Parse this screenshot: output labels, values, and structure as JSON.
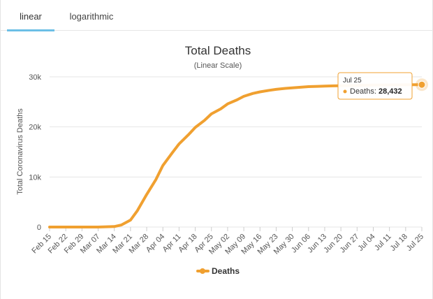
{
  "tabs": [
    {
      "label": "linear",
      "active": true
    },
    {
      "label": "logarithmic",
      "active": false
    }
  ],
  "chart_data": {
    "type": "line",
    "title": "Total Deaths",
    "subtitle": "(Linear Scale)",
    "ylabel": "Total Coronavirus Deaths",
    "xlabel": "",
    "ylim": [
      0,
      30000
    ],
    "y_ticks": [
      {
        "value": 0,
        "label": "0"
      },
      {
        "value": 10000,
        "label": "10k"
      },
      {
        "value": 20000,
        "label": "20k"
      },
      {
        "value": 30000,
        "label": "30k"
      }
    ],
    "x_tick_labels": [
      "Feb 15",
      "Feb 22",
      "Feb 29",
      "Mar 07",
      "Mar 14",
      "Mar 21",
      "Mar 28",
      "Apr 04",
      "Apr 11",
      "Apr 18",
      "Apr 25",
      "May 02",
      "May 09",
      "May 16",
      "May 23",
      "May 30",
      "Jun 06",
      "Jun 13",
      "Jun 20",
      "Jun 27",
      "Jul 04",
      "Jul 11",
      "Jul 18",
      "Jul 25"
    ],
    "grid": true,
    "legend_position": "bottom-center",
    "color": "#f0a030",
    "series": [
      {
        "name": "Deaths",
        "x": [
          "Feb 15",
          "Feb 22",
          "Feb 29",
          "Mar 07",
          "Mar 14",
          "Mar 17",
          "Mar 21",
          "Mar 24",
          "Mar 28",
          "Apr 01",
          "Apr 04",
          "Apr 08",
          "Apr 11",
          "Apr 15",
          "Apr 18",
          "Apr 22",
          "Apr 25",
          "Apr 29",
          "May 02",
          "May 06",
          "May 09",
          "May 13",
          "May 16",
          "May 20",
          "May 23",
          "May 27",
          "May 30",
          "Jun 03",
          "Jun 06",
          "Jun 10",
          "Jun 13",
          "Jun 17",
          "Jun 20",
          "Jun 24",
          "Jun 27",
          "Jul 01",
          "Jul 04",
          "Jul 08",
          "Jul 11",
          "Jul 15",
          "Jul 18",
          "Jul 22",
          "Jul 25"
        ],
        "values": [
          0,
          0,
          0,
          0,
          100,
          400,
          1400,
          3300,
          6500,
          9500,
          12300,
          14800,
          16600,
          18400,
          19900,
          21300,
          22600,
          23600,
          24600,
          25400,
          26100,
          26700,
          27000,
          27300,
          27500,
          27700,
          27800,
          27950,
          28050,
          28100,
          28150,
          28200,
          28230,
          28260,
          28290,
          28320,
          28350,
          28370,
          28390,
          28400,
          28415,
          28425,
          28432
        ]
      }
    ],
    "tooltip": {
      "date": "Jul 25",
      "series": "Deaths",
      "value": "28,432"
    }
  }
}
